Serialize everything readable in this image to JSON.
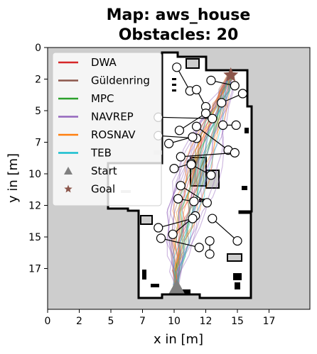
{
  "chart_data": {
    "type": "scatter",
    "title_lines": [
      "Map: aws_house",
      "Obstacles: 20"
    ],
    "xlabel": "x in [m]",
    "ylabel": "y in [m]",
    "x_ticks": [
      "0",
      "2",
      "5",
      "7",
      "10",
      "12",
      "15",
      "17"
    ],
    "x_tick_values": [
      0,
      2.4,
      4.8,
      7.2,
      9.6,
      12.0,
      14.4,
      16.8
    ],
    "y_ticks": [
      "0",
      "2",
      "5",
      "7",
      "10",
      "12",
      "15",
      "17"
    ],
    "y_tick_values": [
      0,
      2.4,
      4.8,
      7.2,
      9.6,
      12.0,
      14.4,
      16.8
    ],
    "xlim": [
      0,
      19.9
    ],
    "ylim": [
      19.9,
      0
    ],
    "y_inverted": true,
    "grid": false,
    "legend_position": "upper left",
    "background_color": "#cdcdcd",
    "free_space_color": "#ffffff",
    "wall_color": "#000000",
    "series": [
      {
        "name": "DWA",
        "color": "#d62728",
        "kind": "line"
      },
      {
        "name": "Güldenring",
        "color": "#8c564b",
        "kind": "line"
      },
      {
        "name": "MPC",
        "color": "#2ca02c",
        "kind": "line"
      },
      {
        "name": "NAVREP",
        "color": "#9467bd",
        "kind": "line"
      },
      {
        "name": "ROSNAV",
        "color": "#ff7f0e",
        "kind": "line"
      },
      {
        "name": "TEB",
        "color": "#17becf",
        "kind": "line"
      },
      {
        "name": "Start",
        "color": "#808080",
        "kind": "triangle"
      },
      {
        "name": "Goal",
        "color": "#8c564b",
        "kind": "star"
      }
    ],
    "start": {
      "x": 9.8,
      "y": 18.2
    },
    "goal": {
      "x": 13.9,
      "y": 2.1
    },
    "obstacles": [
      {
        "start": [
          9.8,
          1.5
        ],
        "end": [
          10.8,
          3.3
        ]
      },
      {
        "start": [
          12.4,
          2.5
        ],
        "end": [
          14.2,
          2.9
        ]
      },
      {
        "start": [
          11.3,
          3.2
        ],
        "end": [
          12.0,
          4.5
        ]
      },
      {
        "start": [
          14.8,
          3.5
        ],
        "end": [
          13.2,
          4.2
        ]
      },
      {
        "start": [
          8.4,
          5.3
        ],
        "end": [
          12.5,
          5.4
        ]
      },
      {
        "start": [
          12.0,
          5.0
        ],
        "end": [
          10.0,
          6.3
        ]
      },
      {
        "start": [
          13.3,
          5.9
        ],
        "end": [
          14.3,
          5.9
        ]
      },
      {
        "start": [
          8.4,
          6.7
        ],
        "end": [
          11.3,
          6.9
        ]
      },
      {
        "start": [
          9.2,
          7.3
        ],
        "end": [
          11.0,
          6.8
        ]
      },
      {
        "start": [
          11.3,
          6.0
        ],
        "end": [
          13.7,
          7.8
        ]
      },
      {
        "start": [
          14.2,
          8.0
        ],
        "end": [
          10.1,
          8.3
        ]
      },
      {
        "start": [
          9.6,
          9.2
        ],
        "end": [
          10.9,
          8.8
        ]
      },
      {
        "start": [
          10.9,
          8.9
        ],
        "end": [
          12.4,
          9.7
        ]
      },
      {
        "start": [
          10.1,
          10.5
        ],
        "end": [
          12.1,
          11.8
        ]
      },
      {
        "start": [
          9.9,
          11.5
        ],
        "end": [
          11.1,
          11.7
        ]
      },
      {
        "start": [
          11.2,
          12.8
        ],
        "end": [
          9.5,
          14.2
        ]
      },
      {
        "start": [
          8.4,
          13.7
        ],
        "end": [
          11.0,
          13.0
        ]
      },
      {
        "start": [
          12.5,
          13.0
        ],
        "end": [
          14.4,
          14.7
        ]
      },
      {
        "start": [
          8.6,
          14.5
        ],
        "end": [
          11.5,
          15.2
        ]
      },
      {
        "start": [
          12.3,
          14.7
        ],
        "end": [
          12.3,
          15.7
        ]
      }
    ]
  }
}
